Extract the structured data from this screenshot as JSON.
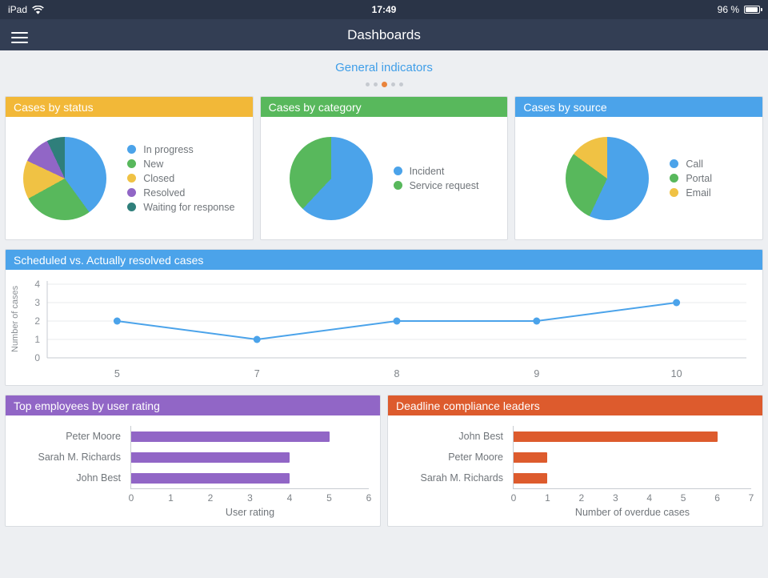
{
  "status_bar": {
    "device": "iPad",
    "time": "17:49",
    "battery": "96 %"
  },
  "nav": {
    "title": "Dashboards"
  },
  "pager": {
    "label": "General indicators",
    "dots": 5,
    "active_dot": 2
  },
  "colors": {
    "navy": "#333e54",
    "accent_blue": "#4ba3ea",
    "green": "#58b85c",
    "yellow": "#f0c244",
    "purple": "#9166c6",
    "teal": "#2f7f7b",
    "orange": "#dd5b2d",
    "active_dot_orange": "#e9843c",
    "page_background": "#edeff2"
  },
  "chart_data": [
    {
      "id": "cases_by_status",
      "type": "pie",
      "title": "Cases by status",
      "header_color": "#f2b838",
      "legend_position": "right",
      "slices": [
        {
          "label": "In progress",
          "value": 40,
          "color": "#4ba3ea"
        },
        {
          "label": "New",
          "value": 27,
          "color": "#58b85c"
        },
        {
          "label": "Closed",
          "value": 15,
          "color": "#f0c244"
        },
        {
          "label": "Resolved",
          "value": 11,
          "color": "#9166c6"
        },
        {
          "label": "Waiting for response",
          "value": 7,
          "color": "#2f7f7b"
        }
      ]
    },
    {
      "id": "cases_by_category",
      "type": "pie",
      "title": "Cases by category",
      "header_color": "#58b85c",
      "legend_position": "right",
      "slices": [
        {
          "label": "Incident",
          "value": 62,
          "color": "#4ba3ea"
        },
        {
          "label": "Service request",
          "value": 38,
          "color": "#58b85c"
        }
      ]
    },
    {
      "id": "cases_by_source",
      "type": "pie",
      "title": "Cases by source",
      "header_color": "#4ba3ea",
      "legend_position": "right",
      "slices": [
        {
          "label": "Call",
          "value": 57,
          "color": "#4ba3ea"
        },
        {
          "label": "Portal",
          "value": 28,
          "color": "#58b85c"
        },
        {
          "label": "Email",
          "value": 15,
          "color": "#f0c244"
        }
      ]
    },
    {
      "id": "scheduled_vs_resolved",
      "type": "line",
      "title": "Scheduled vs. Actually resolved cases",
      "header_color": "#4ba3ea",
      "line_color": "#4ba3ea",
      "x": [
        5,
        7,
        8,
        9,
        10
      ],
      "values": [
        2,
        1,
        2,
        2,
        3
      ],
      "ylabel": "Number of cases",
      "ylim": [
        0,
        4
      ],
      "yticks": [
        0,
        1,
        2,
        3,
        4
      ],
      "grid": true,
      "legend_position": "none"
    },
    {
      "id": "top_employees",
      "type": "bar",
      "title": "Top employees by user rating",
      "header_color": "#9166c6",
      "bar_color": "#9166c6",
      "orientation": "horizontal",
      "categories": [
        "Peter Moore",
        "Sarah M. Richards",
        "John Best"
      ],
      "values": [
        5,
        4,
        4
      ],
      "xlabel": "User rating",
      "xlim": [
        0,
        6
      ],
      "xticks": [
        0,
        1,
        2,
        3,
        4,
        5,
        6
      ]
    },
    {
      "id": "deadline_leaders",
      "type": "bar",
      "title": "Deadline compliance leaders",
      "header_color": "#dd5b2d",
      "bar_color": "#dd5b2d",
      "orientation": "horizontal",
      "categories": [
        "John Best",
        "Peter Moore",
        "Sarah M. Richards"
      ],
      "values": [
        6,
        1,
        1
      ],
      "xlabel": "Number of overdue cases",
      "xlim": [
        0,
        7
      ],
      "xticks": [
        0,
        1,
        2,
        3,
        4,
        5,
        6,
        7
      ]
    }
  ]
}
